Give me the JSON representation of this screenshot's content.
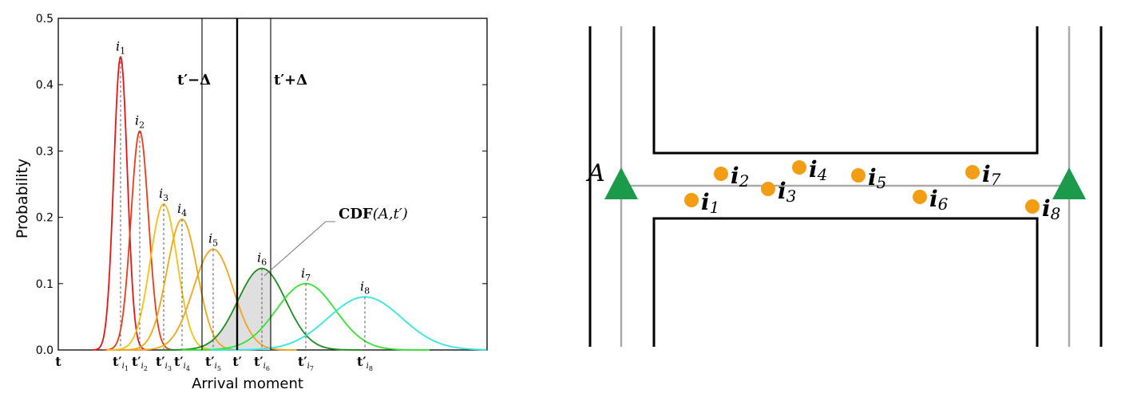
{
  "chart_data": [
    {
      "type": "line",
      "title": "",
      "xlabel": "Arrival moment",
      "ylabel": "Probability",
      "ylim": [
        0,
        0.5
      ],
      "yticks": [
        "0.0",
        "0.1",
        "0.2",
        "0.3",
        "0.4",
        "0.5"
      ],
      "grid": false,
      "legend": "none",
      "series": [
        {
          "name": "i1",
          "sub": "1",
          "peak": 0.442,
          "color": "#ee1111"
        },
        {
          "name": "i2",
          "sub": "2",
          "peak": 0.33,
          "color": "#ee3a11"
        },
        {
          "name": "i3",
          "sub": "3",
          "peak": 0.22,
          "color": "#f4c012"
        },
        {
          "name": "i4",
          "sub": "4",
          "peak": 0.197,
          "color": "#f0a812"
        },
        {
          "name": "i5",
          "sub": "5",
          "peak": 0.152,
          "color": "#f2a41a"
        },
        {
          "name": "i6",
          "sub": "6",
          "peak": 0.123,
          "color": "#1c8c1c"
        },
        {
          "name": "i7",
          "sub": "7",
          "peak": 0.1,
          "color": "#33e333"
        },
        {
          "name": "i8",
          "sub": "8",
          "peak": 0.08,
          "color": "#33e6e0"
        }
      ],
      "x_origin_label": "t",
      "center_label": "t′",
      "left_window_label": "t′−Δ",
      "right_window_label": "t′+Δ",
      "annotation": {
        "bold": "CDF",
        "rest": "(A,t′)"
      }
    },
    {
      "type": "diagram",
      "node_label": "A",
      "point_color": "#f29d13",
      "triangle_color": "#1a9a4a",
      "points": [
        {
          "name": "i",
          "sub": "1"
        },
        {
          "name": "i",
          "sub": "2"
        },
        {
          "name": "i",
          "sub": "3"
        },
        {
          "name": "i",
          "sub": "4"
        },
        {
          "name": "i",
          "sub": "5"
        },
        {
          "name": "i",
          "sub": "6"
        },
        {
          "name": "i",
          "sub": "7"
        },
        {
          "name": "i",
          "sub": "8"
        }
      ]
    }
  ]
}
